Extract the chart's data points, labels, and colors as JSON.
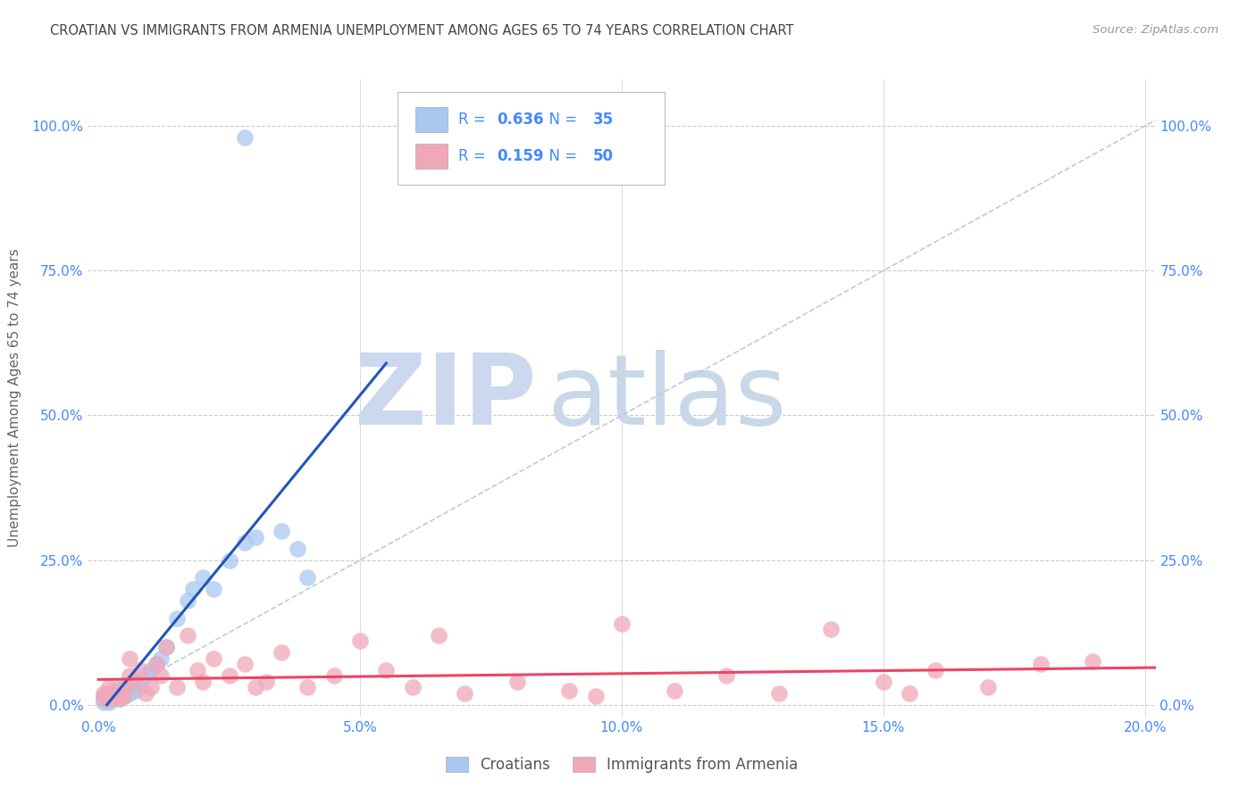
{
  "title": "CROATIAN VS IMMIGRANTS FROM ARMENIA UNEMPLOYMENT AMONG AGES 65 TO 74 YEARS CORRELATION CHART",
  "source": "Source: ZipAtlas.com",
  "ylabel": "Unemployment Among Ages 65 to 74 years",
  "xlim": [
    -0.002,
    0.202
  ],
  "ylim": [
    -0.02,
    1.08
  ],
  "xticks": [
    0.0,
    0.05,
    0.1,
    0.15,
    0.2
  ],
  "xticklabels": [
    "0.0%",
    "5.0%",
    "10.0%",
    "15.0%",
    "20.0%"
  ],
  "yticks": [
    0.0,
    0.25,
    0.5,
    0.75,
    1.0
  ],
  "yticklabels": [
    "0.0%",
    "25.0%",
    "50.0%",
    "75.0%",
    "100.0%"
  ],
  "croatians_R": 0.636,
  "croatians_N": 35,
  "armenia_R": 0.159,
  "armenia_N": 50,
  "croatians_color": "#a8c8f0",
  "armenia_color": "#f0a8b8",
  "croatians_line_color": "#2255bb",
  "armenia_line_color": "#ee4466",
  "ref_line_color": "#bbccdd",
  "background_color": "#ffffff",
  "title_color": "#444444",
  "axis_color": "#4488ff",
  "grid_color": "#cccccc",
  "watermark_zip": "ZIP",
  "watermark_atlas": "atlas",
  "watermark_color_zip": "#ccd8ee",
  "watermark_color_atlas": "#c8d8e8",
  "legend_label1": "Croatians",
  "legend_label2": "Immigrants from Armenia",
  "croatians_x": [
    0.001,
    0.001,
    0.001,
    0.002,
    0.002,
    0.002,
    0.003,
    0.003,
    0.003,
    0.004,
    0.004,
    0.004,
    0.005,
    0.005,
    0.006,
    0.006,
    0.007,
    0.008,
    0.009,
    0.01,
    0.011,
    0.012,
    0.013,
    0.015,
    0.017,
    0.018,
    0.02,
    0.022,
    0.025,
    0.028,
    0.03,
    0.035,
    0.038,
    0.04,
    0.028
  ],
  "croatians_y": [
    0.005,
    0.01,
    0.015,
    0.005,
    0.01,
    0.02,
    0.01,
    0.015,
    0.02,
    0.01,
    0.02,
    0.03,
    0.015,
    0.025,
    0.02,
    0.03,
    0.025,
    0.03,
    0.05,
    0.06,
    0.07,
    0.08,
    0.1,
    0.15,
    0.18,
    0.2,
    0.22,
    0.2,
    0.25,
    0.28,
    0.29,
    0.3,
    0.27,
    0.22,
    0.98
  ],
  "armenia_x": [
    0.001,
    0.001,
    0.002,
    0.002,
    0.003,
    0.003,
    0.004,
    0.004,
    0.005,
    0.005,
    0.006,
    0.006,
    0.007,
    0.008,
    0.009,
    0.01,
    0.011,
    0.012,
    0.013,
    0.015,
    0.017,
    0.019,
    0.02,
    0.022,
    0.025,
    0.028,
    0.03,
    0.032,
    0.035,
    0.04,
    0.045,
    0.05,
    0.055,
    0.06,
    0.065,
    0.07,
    0.08,
    0.09,
    0.095,
    0.1,
    0.11,
    0.12,
    0.13,
    0.14,
    0.15,
    0.155,
    0.16,
    0.17,
    0.18,
    0.19
  ],
  "armenia_y": [
    0.01,
    0.02,
    0.01,
    0.03,
    0.015,
    0.025,
    0.01,
    0.02,
    0.015,
    0.03,
    0.05,
    0.08,
    0.04,
    0.06,
    0.02,
    0.03,
    0.07,
    0.05,
    0.1,
    0.03,
    0.12,
    0.06,
    0.04,
    0.08,
    0.05,
    0.07,
    0.03,
    0.04,
    0.09,
    0.03,
    0.05,
    0.11,
    0.06,
    0.03,
    0.12,
    0.02,
    0.04,
    0.025,
    0.015,
    0.14,
    0.025,
    0.05,
    0.02,
    0.13,
    0.04,
    0.02,
    0.06,
    0.03,
    0.07,
    0.075
  ]
}
